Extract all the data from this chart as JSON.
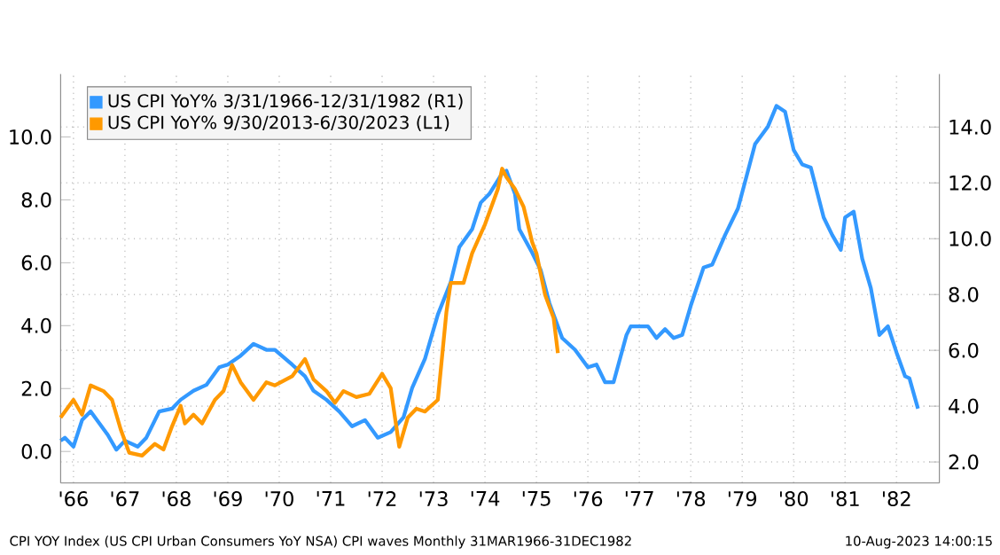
{
  "chart_data": {
    "type": "line",
    "x": [
      "1966-04",
      "1966-05",
      "1966-07",
      "1966-09",
      "1966-11",
      "1967-01",
      "1967-03",
      "1967-05",
      "1967-07",
      "1967-10",
      "1967-12",
      "1968-03",
      "1968-06",
      "1968-08",
      "1968-11",
      "1969-02",
      "1969-05",
      "1969-07",
      "1969-10",
      "1970-01",
      "1970-04",
      "1970-06",
      "1970-10",
      "1971-01",
      "1971-03",
      "1971-06",
      "1971-09",
      "1971-12",
      "1972-03",
      "1972-06",
      "1972-09",
      "1972-12",
      "1973-02",
      "1973-05",
      "1973-08",
      "1973-11",
      "1974-01",
      "1974-04",
      "1974-06",
      "1974-08",
      "1974-11",
      "1974-12",
      "1975-02",
      "1975-03",
      "1975-06",
      "1975-08",
      "1975-10",
      "1976-01",
      "1976-04",
      "1976-07",
      "1976-09",
      "1976-11",
      "1977-01",
      "1977-04",
      "1977-05",
      "1977-09",
      "1977-11",
      "1978-01",
      "1978-03",
      "1978-05",
      "1978-07",
      "1978-10",
      "1978-12",
      "1979-03",
      "1979-06",
      "1979-08",
      "1979-10",
      "1980-01",
      "1980-03",
      "1980-05",
      "1980-07",
      "1980-09",
      "1980-11",
      "1981-02",
      "1981-04",
      "1981-06",
      "1981-07",
      "1981-09",
      "1981-11",
      "1982-01",
      "1982-03",
      "1982-05",
      "1982-07",
      "1982-09",
      "1982-10",
      "1982-12"
    ],
    "series": [
      {
        "name": "US CPI YoY% 3/31/1966-12/31/1982 (R1)",
        "color": "#3399ff",
        "axis": "y2",
        "values": [
          2.76,
          2.87,
          2.55,
          3.5,
          3.81,
          3.39,
          2.97,
          2.44,
          2.76,
          2.55,
          2.87,
          3.81,
          3.91,
          4.23,
          4.55,
          4.76,
          5.39,
          5.49,
          5.81,
          6.23,
          6.02,
          6.02,
          5.49,
          5.07,
          4.55,
          4.23,
          3.81,
          3.28,
          3.5,
          2.87,
          3.07,
          3.6,
          4.65,
          5.7,
          7.28,
          8.44,
          9.7,
          10.34,
          11.29,
          11.6,
          12.34,
          12.44,
          11.6,
          10.34,
          9.5,
          8.87,
          7.7,
          6.44,
          6.02,
          5.39,
          5.49,
          4.86,
          4.86,
          6.55,
          6.86,
          6.86,
          6.44,
          6.76,
          6.44,
          6.55,
          7.6,
          8.97,
          9.07,
          10.13,
          11.08,
          12.23,
          13.39,
          14.02,
          14.76,
          14.55,
          13.18,
          12.66,
          12.55,
          10.76,
          10.13,
          9.6,
          10.76,
          10.97,
          9.28,
          8.23,
          6.55,
          6.86,
          5.92,
          5.07,
          5.0,
          3.91
        ]
      },
      {
        "name": "US CPI YoY% 9/30/2013-6/30/2023 (L1)",
        "color": "#ff9900",
        "axis": "y",
        "x": [
          "1966-04",
          "1966-07",
          "1966-09",
          "1966-11",
          "1967-02",
          "1967-04",
          "1967-06",
          "1967-08",
          "1967-11",
          "1968-02",
          "1968-04",
          "1968-06",
          "1968-08",
          "1968-09",
          "1968-11",
          "1969-01",
          "1969-04",
          "1969-06",
          "1969-08",
          "1969-10",
          "1970-01",
          "1970-04",
          "1970-06",
          "1970-10",
          "1971-01",
          "1971-03",
          "1971-06",
          "1971-08",
          "1971-10",
          "1972-01",
          "1972-04",
          "1972-07",
          "1972-09",
          "1972-11",
          "1973-01",
          "1973-03",
          "1973-05",
          "1973-08",
          "1973-10",
          "1973-11",
          "1974-02",
          "1974-04",
          "1974-07",
          "1974-10",
          "1974-11",
          "1974-12",
          "1975-02",
          "1975-04",
          "1975-06",
          "1975-07",
          "1975-09",
          "1975-11",
          "1975-12"
        ],
        "values": [
          1.08,
          1.64,
          1.17,
          2.1,
          1.92,
          1.64,
          0.71,
          -0.04,
          -0.13,
          0.24,
          0.06,
          0.8,
          1.45,
          0.89,
          1.17,
          0.89,
          1.64,
          1.92,
          2.75,
          2.2,
          1.64,
          2.2,
          2.1,
          2.39,
          2.94,
          2.29,
          1.92,
          1.55,
          1.92,
          1.73,
          1.83,
          2.47,
          2.01,
          0.15,
          1.08,
          1.36,
          1.27,
          1.64,
          4.43,
          5.36,
          5.36,
          6.3,
          7.22,
          8.34,
          8.99,
          8.72,
          8.34,
          7.78,
          6.66,
          6.3,
          4.99,
          4.25,
          3.13
        ]
      }
    ],
    "xlim": [
      "1966-04",
      "1983-05"
    ],
    "xticks": [
      {
        "value": "1966-07",
        "label": "'66"
      },
      {
        "value": "1967-07",
        "label": "'67"
      },
      {
        "value": "1968-07",
        "label": "'68"
      },
      {
        "value": "1969-07",
        "label": "'69"
      },
      {
        "value": "1970-07",
        "label": "'70"
      },
      {
        "value": "1971-07",
        "label": "'71"
      },
      {
        "value": "1972-07",
        "label": "'72"
      },
      {
        "value": "1973-07",
        "label": "'73"
      },
      {
        "value": "1974-07",
        "label": "'74"
      },
      {
        "value": "1975-07",
        "label": "'75"
      },
      {
        "value": "1976-07",
        "label": "'76"
      },
      {
        "value": "1977-07",
        "label": "'77"
      },
      {
        "value": "1978-07",
        "label": "'78"
      },
      {
        "value": "1979-07",
        "label": "'79"
      },
      {
        "value": "1980-07",
        "label": "'80"
      },
      {
        "value": "1981-07",
        "label": "'81"
      },
      {
        "value": "1982-07",
        "label": "'82"
      }
    ],
    "ylim": [
      -1,
      12
    ],
    "yticks": [
      {
        "value": 0,
        "label": "0.0"
      },
      {
        "value": 2,
        "label": "2.0"
      },
      {
        "value": 4,
        "label": "4.0"
      },
      {
        "value": 6,
        "label": "6.0"
      },
      {
        "value": 8,
        "label": "8.0"
      },
      {
        "value": 10,
        "label": "10.0"
      }
    ],
    "y2lim": [
      1.25,
      15.9
    ],
    "y2ticks": [
      {
        "value": 2,
        "label": "2.0"
      },
      {
        "value": 4,
        "label": "4.0"
      },
      {
        "value": 6,
        "label": "6.0"
      },
      {
        "value": 8,
        "label": "8.0"
      },
      {
        "value": 10,
        "label": "10.0"
      },
      {
        "value": 12,
        "label": "12.0"
      },
      {
        "value": 14,
        "label": "14.0"
      }
    ],
    "grid": true,
    "legend": "top left",
    "annotations": [
      "CPI YOY Index (US CPI Urban Consumers YoY NSA) CPI waves  Monthly 31MAR1966-31DEC1982",
      "10-Aug-2023 14:00:15"
    ]
  }
}
